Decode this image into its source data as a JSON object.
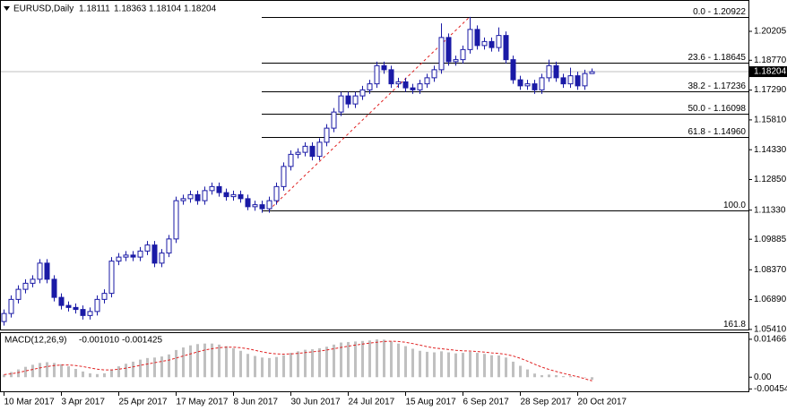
{
  "chart_data": {
    "type": "candlestick",
    "title": "EURUSD,Daily",
    "color": "#1a1aa6",
    "open": [
      1.058,
      1.062,
      1.069,
      1.074,
      1.077,
      1.079,
      1.087,
      1.079,
      1.07,
      1.066,
      1.065,
      1.064,
      1.061,
      1.063,
      1.069,
      1.072,
      1.088,
      1.09,
      1.091,
      1.09,
      1.093,
      1.096,
      1.087,
      1.092,
      1.099,
      1.118,
      1.119,
      1.121,
      1.118,
      1.123,
      1.125,
      1.122,
      1.12,
      1.121,
      1.119,
      1.115,
      1.116,
      1.114,
      1.118,
      1.125,
      1.135,
      1.141,
      1.142,
      1.145,
      1.14,
      1.147,
      1.154,
      1.162,
      1.17,
      1.166,
      1.17,
      1.173,
      1.176,
      1.185,
      1.183,
      1.176,
      1.177,
      1.174,
      1.173,
      1.176,
      1.179,
      1.183,
      1.199,
      1.187,
      1.188,
      1.193,
      1.203,
      1.195,
      1.197,
      1.194,
      1.2,
      1.188,
      1.178,
      1.175,
      1.176,
      1.173,
      1.179,
      1.185,
      1.179,
      1.176,
      1.18,
      1.175,
      1.18111
    ],
    "high": [
      1.064,
      1.071,
      1.076,
      1.079,
      1.081,
      1.089,
      1.089,
      1.081,
      1.072,
      1.068,
      1.067,
      1.066,
      1.065,
      1.071,
      1.074,
      1.09,
      1.092,
      1.093,
      1.093,
      1.095,
      1.098,
      1.098,
      1.094,
      1.101,
      1.12,
      1.121,
      1.123,
      1.123,
      1.125,
      1.127,
      1.127,
      1.124,
      1.123,
      1.123,
      1.121,
      1.118,
      1.118,
      1.12,
      1.127,
      1.137,
      1.143,
      1.144,
      1.147,
      1.147,
      1.149,
      1.156,
      1.164,
      1.172,
      1.172,
      1.172,
      1.175,
      1.178,
      1.187,
      1.187,
      1.185,
      1.179,
      1.179,
      1.176,
      1.178,
      1.181,
      1.185,
      1.206,
      1.201,
      1.19,
      1.195,
      1.2092,
      1.205,
      1.199,
      1.199,
      1.204,
      1.202,
      1.19,
      1.18,
      1.178,
      1.178,
      1.181,
      1.188,
      1.187,
      1.181,
      1.184,
      1.182,
      1.183,
      1.18363
    ],
    "low": [
      1.056,
      1.06,
      1.067,
      1.072,
      1.075,
      1.077,
      1.077,
      1.068,
      1.064,
      1.063,
      1.062,
      1.059,
      1.059,
      1.061,
      1.067,
      1.07,
      1.086,
      1.088,
      1.088,
      1.088,
      1.091,
      1.085,
      1.085,
      1.09,
      1.097,
      1.116,
      1.117,
      1.116,
      1.116,
      1.121,
      1.12,
      1.118,
      1.118,
      1.117,
      1.1133,
      1.113,
      1.112,
      1.112,
      1.116,
      1.123,
      1.133,
      1.139,
      1.14,
      1.138,
      1.138,
      1.145,
      1.152,
      1.16,
      1.164,
      1.164,
      1.168,
      1.171,
      1.174,
      1.181,
      1.174,
      1.174,
      1.172,
      1.171,
      1.171,
      1.174,
      1.177,
      1.181,
      1.185,
      1.185,
      1.186,
      1.191,
      1.193,
      1.193,
      1.192,
      1.192,
      1.186,
      1.176,
      1.173,
      1.173,
      1.171,
      1.171,
      1.177,
      1.177,
      1.174,
      1.174,
      1.173,
      1.173,
      1.18104
    ],
    "close": [
      1.062,
      1.069,
      1.074,
      1.077,
      1.079,
      1.087,
      1.079,
      1.07,
      1.066,
      1.065,
      1.064,
      1.061,
      1.063,
      1.069,
      1.072,
      1.088,
      1.09,
      1.091,
      1.09,
      1.093,
      1.096,
      1.087,
      1.092,
      1.099,
      1.118,
      1.119,
      1.121,
      1.118,
      1.123,
      1.125,
      1.122,
      1.12,
      1.121,
      1.119,
      1.115,
      1.116,
      1.114,
      1.118,
      1.125,
      1.135,
      1.141,
      1.142,
      1.145,
      1.14,
      1.147,
      1.154,
      1.162,
      1.17,
      1.166,
      1.17,
      1.173,
      1.176,
      1.185,
      1.183,
      1.176,
      1.177,
      1.174,
      1.173,
      1.176,
      1.179,
      1.183,
      1.199,
      1.187,
      1.188,
      1.193,
      1.203,
      1.195,
      1.197,
      1.194,
      1.2,
      1.188,
      1.178,
      1.175,
      1.176,
      1.173,
      1.179,
      1.185,
      1.179,
      1.176,
      1.18,
      1.175,
      1.1811,
      1.18204
    ],
    "ylim": [
      1.05405,
      1.21761
    ],
    "yticks": [
      1.20205,
      {
        "value": 1.1877,
        "label": "1.18770"
      },
      {
        "value": 1.1729,
        "label": "1.17290"
      },
      {
        "value": 1.1581,
        "label": "1.15810"
      },
      {
        "value": 1.1433,
        "label": "1.14330"
      },
      {
        "value": 1.1285,
        "label": "1.12850"
      },
      {
        "value": 1.1133,
        "label": "1.11330"
      },
      1.09885,
      {
        "value": 1.0837,
        "label": "1.08370"
      },
      {
        "value": 1.0689,
        "label": "1.06890"
      },
      {
        "value": 1.0541,
        "label": "1.05410"
      }
    ],
    "xticks": [
      {
        "value": 0,
        "label": "10 Mar 2017"
      },
      {
        "value": 8,
        "label": "3 Apr 2017"
      },
      {
        "value": 16,
        "label": "25 Apr 2017"
      },
      {
        "value": 24,
        "label": "17 May 2017"
      },
      {
        "value": 32,
        "label": "8 Jun 2017"
      },
      {
        "value": 40,
        "label": "30 Jun 2017"
      },
      {
        "value": 48,
        "label": "24 Jul 2017"
      },
      {
        "value": 56,
        "label": "15 Aug 2017"
      },
      {
        "value": 64,
        "label": "6 Sep 2017"
      },
      {
        "value": 72,
        "label": "28 Sep 2017"
      },
      {
        "value": 80,
        "label": "20 Oct 2017"
      }
    ],
    "current_price": 1.18204,
    "fib_levels": [
      {
        "value": 1.20922,
        "label": "0.0 - 1.20922"
      },
      {
        "value": 1.18645,
        "label": "23.6 - 1.18645"
      },
      {
        "value": 1.17236,
        "label": "38.2 - 1.17236"
      },
      {
        "value": 1.16098,
        "label": "50.0 - 1.16098"
      },
      {
        "value": 1.1496,
        "label": "61.8 - 1.14960"
      },
      {
        "value": 1.1133,
        "label": "100.0"
      },
      {
        "value": 1.054,
        "label": "161.8"
      }
    ],
    "fib_start": 37,
    "trendline": {
      "x": [
        37,
        65
      ],
      "y": [
        1.1133,
        1.20922
      ],
      "color": "#e02020"
    },
    "macd": {
      "type": "macd",
      "title": "MACD(12,26,9)",
      "readout": [
        {
          "value": -0.00101,
          "label": "-0.001010"
        },
        {
          "value": -0.001425,
          "label": "-0.001425"
        }
      ],
      "histogram": [
        0.001,
        0.002,
        0.003,
        0.004,
        0.0048,
        0.0055,
        0.0058,
        0.0055,
        0.005,
        0.0042,
        0.0032,
        0.0022,
        0.0015,
        0.0012,
        0.0015,
        0.003,
        0.0042,
        0.0052,
        0.006,
        0.0068,
        0.0074,
        0.0076,
        0.008,
        0.0088,
        0.0105,
        0.0115,
        0.0123,
        0.0128,
        0.013,
        0.013,
        0.0126,
        0.012,
        0.0112,
        0.0102,
        0.009,
        0.0082,
        0.0076,
        0.0074,
        0.0078,
        0.0085,
        0.0094,
        0.01,
        0.0106,
        0.0108,
        0.0112,
        0.0118,
        0.0126,
        0.0134,
        0.0136,
        0.0138,
        0.014,
        0.0142,
        0.0146,
        0.0145,
        0.0138,
        0.013,
        0.012,
        0.011,
        0.0102,
        0.0098,
        0.0096,
        0.01,
        0.0096,
        0.0092,
        0.0094,
        0.0098,
        0.0094,
        0.009,
        0.0085,
        0.0084,
        0.0076,
        0.006,
        0.0044,
        0.003,
        0.0014,
        0.0008,
        0.001,
        0.0008,
        0.0004,
        0.0004,
        0.0002,
        0.0,
        -0.00101
      ],
      "signal": [
        0.001,
        0.0013,
        0.0018,
        0.0024,
        0.003,
        0.0036,
        0.0041,
        0.0045,
        0.0047,
        0.0047,
        0.0045,
        0.0041,
        0.0036,
        0.0031,
        0.0028,
        0.0028,
        0.0031,
        0.0035,
        0.004,
        0.0046,
        0.0051,
        0.0056,
        0.0061,
        0.0066,
        0.0074,
        0.0082,
        0.009,
        0.0098,
        0.0105,
        0.011,
        0.0114,
        0.0116,
        0.0116,
        0.0114,
        0.011,
        0.0104,
        0.0098,
        0.0093,
        0.009,
        0.0089,
        0.009,
        0.0092,
        0.0095,
        0.0098,
        0.0101,
        0.0105,
        0.011,
        0.0115,
        0.012,
        0.0124,
        0.0128,
        0.0132,
        0.0135,
        0.0138,
        0.0139,
        0.0138,
        0.0135,
        0.013,
        0.0124,
        0.0118,
        0.0113,
        0.011,
        0.0107,
        0.0104,
        0.0102,
        0.0101,
        0.0099,
        0.0097,
        0.0094,
        0.0092,
        0.0088,
        0.0082,
        0.0073,
        0.0062,
        0.005,
        0.0039,
        0.003,
        0.0022,
        0.0015,
        0.0008,
        0.0002,
        -0.0006,
        -0.001425
      ],
      "hist_color": "#c0c0c0",
      "signal_color": "#e02020",
      "ylim": [
        -0.0058,
        0.01739
      ],
      "yticks": [
        0.01466,
        {
          "value": 0,
          "label": "0.00"
        },
        -0.004545
      ]
    }
  }
}
